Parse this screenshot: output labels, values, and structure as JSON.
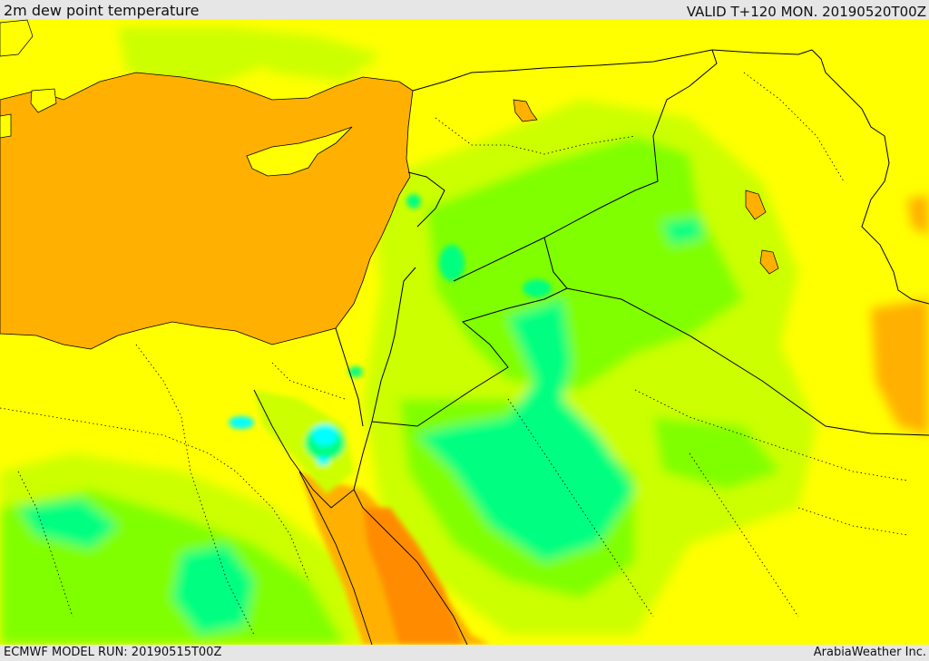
{
  "header": {
    "title": "2m dew point temperature",
    "valid": "VALID T+120 MON. 20190520T00Z"
  },
  "footer": {
    "model_run": "ECMWF MODEL RUN: 20190515T00Z",
    "provider": "ArabiaWeather Inc."
  },
  "palette": {
    "sea_orange": "#ffb000",
    "deep_orange": "#ff8c00",
    "yellow": "#ffff00",
    "yellow_green": "#ccff00",
    "green": "#80ff00",
    "mint": "#00ff80",
    "spring": "#00f0a0",
    "cyan": "#00ffff",
    "border": "#000000"
  }
}
